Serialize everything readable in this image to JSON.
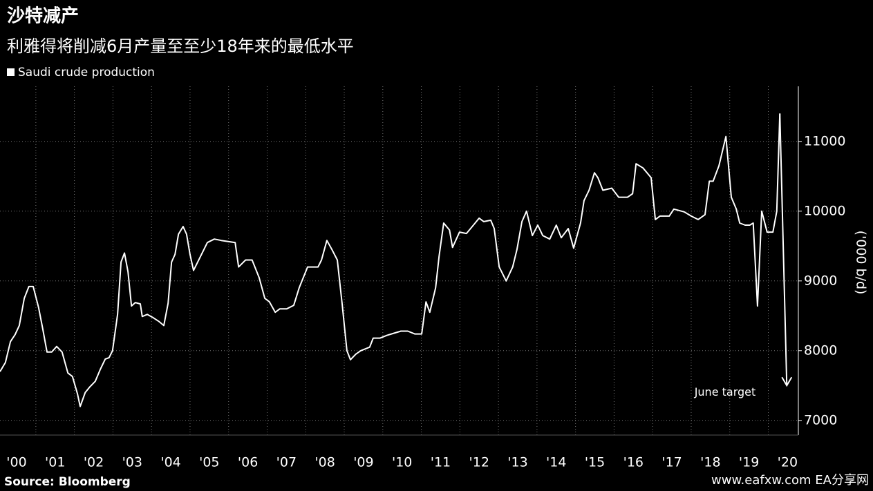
{
  "chart_data": {
    "type": "line",
    "title": "沙特减产",
    "subtitle": "利雅得将削减6月产量至至少18年来的最低水平",
    "y_axis_label": "('000 b/d)",
    "source": "Source: Bloomberg",
    "watermark": "www.eafxw.com  EA分享网",
    "x": [
      2000.07,
      2000.21,
      2000.34,
      2000.46,
      2000.57,
      2000.7,
      2000.82,
      2000.93,
      2001.07,
      2001.18,
      2001.29,
      2001.41,
      2001.54,
      2001.68,
      2001.83,
      2001.95,
      2002.08,
      2002.15,
      2002.28,
      2002.4,
      2002.54,
      2002.67,
      2002.8,
      2002.9,
      2002.99,
      2003.12,
      2003.21,
      2003.3,
      2003.39,
      2003.48,
      2003.58,
      2003.71,
      2003.76,
      2003.89,
      2004.05,
      2004.19,
      2004.32,
      2004.43,
      2004.52,
      2004.61,
      2004.7,
      2004.82,
      2004.91,
      2005.0,
      2005.09,
      2005.27,
      2005.45,
      2005.63,
      2005.81,
      2006.17,
      2006.26,
      2006.44,
      2006.61,
      2006.79,
      2006.94,
      2007.06,
      2007.21,
      2007.33,
      2007.51,
      2007.69,
      2007.83,
      2008.05,
      2008.32,
      2008.41,
      2008.55,
      2008.68,
      2008.82,
      2008.95,
      2009.07,
      2009.16,
      2009.3,
      2009.43,
      2009.66,
      2009.75,
      2009.93,
      2010.11,
      2010.29,
      2010.47,
      2010.65,
      2010.83,
      2011.01,
      2011.12,
      2011.22,
      2011.37,
      2011.46,
      2011.58,
      2011.73,
      2011.81,
      2011.99,
      2012.17,
      2012.35,
      2012.5,
      2012.62,
      2012.8,
      2012.89,
      2013.02,
      2013.2,
      2013.37,
      2013.48,
      2013.61,
      2013.73,
      2013.88,
      2014.02,
      2014.15,
      2014.33,
      2014.5,
      2014.63,
      2014.81,
      2014.95,
      2015.13,
      2015.22,
      2015.35,
      2015.49,
      2015.58,
      2015.71,
      2015.94,
      2016.12,
      2016.35,
      2016.48,
      2016.57,
      2016.75,
      2016.96,
      2017.07,
      2017.19,
      2017.43,
      2017.55,
      2017.82,
      2018.0,
      2018.18,
      2018.36,
      2018.47,
      2018.57,
      2018.72,
      2018.9,
      2019.04,
      2019.17,
      2019.26,
      2019.4,
      2019.52,
      2019.61,
      2019.72,
      2019.83,
      2019.97,
      2020.12,
      2020.22,
      2020.3
    ],
    "series": [
      {
        "name": "Saudi crude production",
        "color": "#ffffff",
        "values": [
          7700,
          7830,
          8130,
          8230,
          8360,
          8750,
          8920,
          8920,
          8620,
          8310,
          7980,
          7980,
          8060,
          7980,
          7680,
          7630,
          7380,
          7200,
          7400,
          7480,
          7560,
          7730,
          7880,
          7900,
          8000,
          8520,
          9270,
          9400,
          9130,
          8640,
          8690,
          8670,
          8490,
          8520,
          8470,
          8420,
          8360,
          8680,
          9270,
          9380,
          9670,
          9780,
          9670,
          9380,
          9150,
          9350,
          9550,
          9600,
          9580,
          9550,
          9200,
          9300,
          9300,
          9050,
          8750,
          8700,
          8550,
          8600,
          8600,
          8650,
          8900,
          9200,
          9200,
          9300,
          9580,
          9450,
          9300,
          8650,
          8000,
          7870,
          7950,
          8000,
          8050,
          8180,
          8180,
          8220,
          8250,
          8280,
          8280,
          8240,
          8240,
          8700,
          8550,
          8900,
          9350,
          9830,
          9730,
          9480,
          9700,
          9680,
          9800,
          9900,
          9850,
          9870,
          9750,
          9200,
          9000,
          9200,
          9450,
          9850,
          10000,
          9650,
          9800,
          9650,
          9600,
          9800,
          9620,
          9750,
          9470,
          9830,
          10150,
          10300,
          10550,
          10480,
          10300,
          10330,
          10200,
          10200,
          10250,
          10680,
          10620,
          10480,
          9880,
          9930,
          9930,
          10030,
          9990,
          9930,
          9880,
          9950,
          10430,
          10430,
          10650,
          11070,
          10200,
          10030,
          9830,
          9800,
          9800,
          9830,
          8640,
          10000,
          9700,
          9700,
          10000,
          11400
        ]
      }
    ],
    "annotation": {
      "text": "June target",
      "x": 2020.48,
      "value": 7500
    },
    "xlim": [
      2000.07,
      2020.78
    ],
    "ylim": [
      6790,
      11790
    ],
    "xticks": [
      {
        "value": 2000,
        "label": "'00"
      },
      {
        "value": 2001,
        "label": "'01"
      },
      {
        "value": 2002,
        "label": "'02"
      },
      {
        "value": 2003,
        "label": "'03"
      },
      {
        "value": 2004,
        "label": "'04"
      },
      {
        "value": 2005,
        "label": "'05"
      },
      {
        "value": 2006,
        "label": "'06"
      },
      {
        "value": 2007,
        "label": "'07"
      },
      {
        "value": 2008,
        "label": "'08"
      },
      {
        "value": 2009,
        "label": "'09"
      },
      {
        "value": 2010,
        "label": "'10"
      },
      {
        "value": 2011,
        "label": "'11"
      },
      {
        "value": 2012,
        "label": "'12"
      },
      {
        "value": 2013,
        "label": "'13"
      },
      {
        "value": 2014,
        "label": "'14"
      },
      {
        "value": 2015,
        "label": "'15"
      },
      {
        "value": 2016,
        "label": "'16"
      },
      {
        "value": 2017,
        "label": "'17"
      },
      {
        "value": 2018,
        "label": "'18"
      },
      {
        "value": 2019,
        "label": "'19"
      },
      {
        "value": 2020,
        "label": "'20"
      }
    ],
    "yticks": [
      7000,
      8000,
      9000,
      10000,
      11000
    ],
    "grid": true
  }
}
